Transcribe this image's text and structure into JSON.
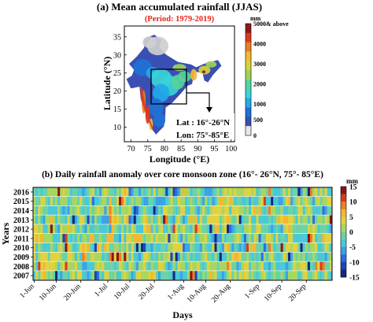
{
  "colors": {
    "title_red": "#e8231b",
    "map_scale": [
      "#ffffff",
      "#3a4fb3",
      "#1f72d6",
      "#21a9e8",
      "#3bd3d7",
      "#57d39b",
      "#9ed25a",
      "#d5d33a",
      "#f3b933",
      "#ee7d25",
      "#d83b1f",
      "#8d1a1a"
    ],
    "anomaly_scale": [
      "#13297d",
      "#1d45b8",
      "#2a6fe0",
      "#3aa2e6",
      "#49c8d6",
      "#6ad2a6",
      "#a7d65f",
      "#dfd23e",
      "#f6b62f",
      "#f07d24",
      "#d63c1b",
      "#8a1515"
    ]
  },
  "panel_a": {
    "title": "(a) Mean accumulated rainfall (JJAS)",
    "period": "(Period: 1979-2019)",
    "xlabel": "Longitude (°E)",
    "ylabel": "Latitude (°N)",
    "xticks": [
      "70",
      "75",
      "80",
      "85",
      "90",
      "95",
      "100"
    ],
    "yticks": [
      "10",
      "15",
      "20",
      "25",
      "30",
      "35"
    ],
    "colorbar_unit": "mm",
    "colorbar_top_label": "5000& above",
    "colorbar_ticks": [
      "4000",
      "3000",
      "2000",
      "1000",
      "500",
      "0"
    ],
    "box_lat": "Lat : 16°-26°N",
    "box_lon": "Lon: 75°-85°E"
  },
  "chart_data": [
    {
      "type": "heatmap",
      "title": "(a) Mean accumulated rainfall (JJAS)",
      "subtitle": "(Period: 1979-2019)",
      "xlabel": "Longitude (°E)",
      "ylabel": "Latitude (°N)",
      "xlim": [
        68,
        101
      ],
      "ylim": [
        6,
        38
      ],
      "colorbar": {
        "unit": "mm",
        "min": 0,
        "max": 5000,
        "ticks": [
          0,
          500,
          1000,
          2000,
          3000,
          4000,
          5000
        ]
      },
      "annotation": {
        "box_lat": [
          16,
          26
        ],
        "box_lon": [
          75,
          85
        ]
      }
    },
    {
      "type": "heatmap",
      "title": "(b) Daily rainfall anomaly over core monsoon zone (16°- 26°N, 75°- 85°E)",
      "xlabel": "Days",
      "ylabel": "Years",
      "years": [
        "2016",
        "2015",
        "2014",
        "2013",
        "2012",
        "2011",
        "2010",
        "2009",
        "2008",
        "2007"
      ],
      "x_tick_labels": [
        "1-Jun",
        "10-Jun",
        "20-Jun",
        "1-Jul",
        "10-Jul",
        "20-Jul",
        "1-Aug",
        "10-Aug",
        "20-Aug",
        "1-Sep",
        "10-Sep",
        "20-Sep"
      ],
      "n_days": 122,
      "colorbar": {
        "unit": "mm",
        "min": -15,
        "max": 15,
        "ticks": [
          15,
          10,
          5,
          0,
          -5,
          -10,
          -15
        ]
      }
    }
  ],
  "panel_b": {
    "title": "(b) Daily rainfall anomaly over core monsoon zone (16°- 26°N, 75°- 85°E)",
    "xlabel": "Days",
    "ylabel": "Years",
    "colorbar_unit": "mm",
    "colorbar_ticks": [
      "15",
      "10",
      "5",
      "0",
      "-5",
      "-10",
      "-15"
    ]
  }
}
